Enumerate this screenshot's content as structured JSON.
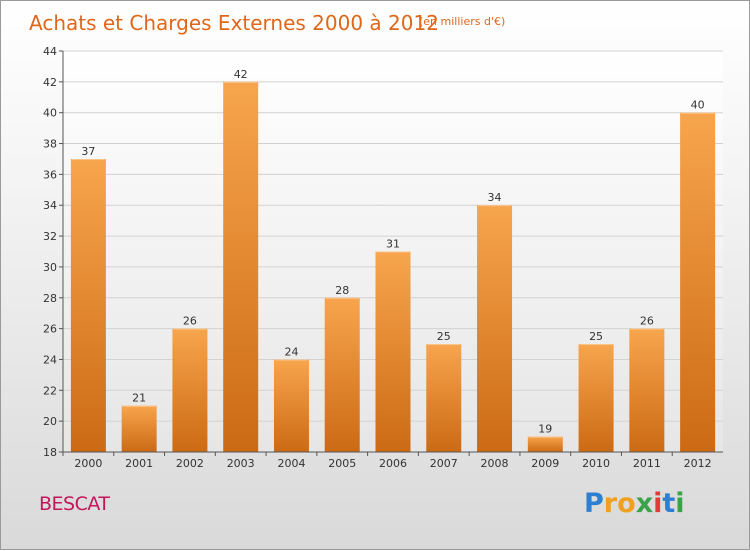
{
  "header": {
    "title": "Achats et Charges Externes 2000 à 2012",
    "unit": "(en milliers d'€)"
  },
  "commune": "BESCAT",
  "logo": {
    "letters": [
      "P",
      "r",
      "o",
      "x",
      "i",
      "t",
      "i"
    ],
    "colors": [
      "#2f7fd1",
      "#f0a020",
      "#f0a020",
      "#3aa34a",
      "#e23b3b",
      "#2f7fd1",
      "#3aa34a"
    ]
  },
  "colors": {
    "bar_light": "#f7a54e",
    "bar_dark": "#cc6a14",
    "title": "#e0671a",
    "commune": "#c2185b"
  },
  "chart_data": {
    "type": "bar",
    "title": "Achats et Charges Externes 2000 à 2012",
    "subtitle": "(en milliers d'€)",
    "xlabel": "",
    "ylabel": "",
    "categories": [
      "2000",
      "2001",
      "2002",
      "2003",
      "2004",
      "2005",
      "2006",
      "2007",
      "2008",
      "2009",
      "2010",
      "2011",
      "2012"
    ],
    "values": [
      37,
      21,
      26,
      42,
      24,
      28,
      31,
      25,
      34,
      19,
      25,
      26,
      40
    ],
    "ylim": [
      18,
      44
    ],
    "yticks": [
      18,
      20,
      22,
      24,
      26,
      28,
      30,
      32,
      34,
      36,
      38,
      40,
      42,
      44
    ],
    "grid": true,
    "data_labels": true
  }
}
